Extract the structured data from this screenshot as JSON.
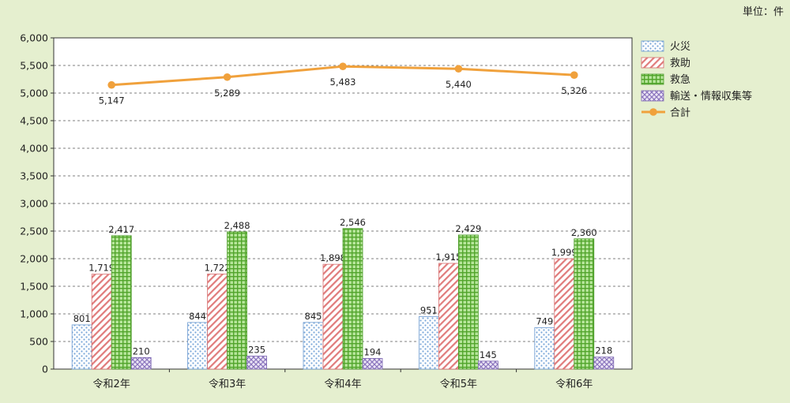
{
  "unit_label": "単位：件",
  "chart_data": {
    "type": "bar",
    "categories": [
      "令和2年",
      "令和3年",
      "令和4年",
      "令和5年",
      "令和6年"
    ],
    "ylim": [
      0,
      6000
    ],
    "yticks": [
      "0",
      "500",
      "1,000",
      "1,500",
      "2,000",
      "2,500",
      "3,000",
      "3,500",
      "4,000",
      "4,500",
      "5,000",
      "5,500",
      "6,000"
    ],
    "grid": true,
    "legend_position": "right",
    "series": [
      {
        "name": "火災",
        "kind": "bar",
        "color": "#bcd3ee",
        "values": [
          801,
          844,
          845,
          951,
          749
        ],
        "labels": [
          "801",
          "844",
          "845",
          "951",
          "749"
        ]
      },
      {
        "name": "救助",
        "kind": "bar",
        "color": "#f2b6b6",
        "values": [
          1719,
          1722,
          1898,
          1915,
          1999
        ],
        "labels": [
          "1,719",
          "1,722",
          "1,898",
          "1,915",
          "1,999"
        ]
      },
      {
        "name": "救急",
        "kind": "bar",
        "color": "#8fd06a",
        "values": [
          2417,
          2488,
          2546,
          2429,
          2360
        ],
        "labels": [
          "2,417",
          "2,488",
          "2,546",
          "2,429",
          "2,360"
        ]
      },
      {
        "name": "輸送・情報収集等",
        "kind": "bar",
        "color": "#b8a6d9",
        "values": [
          210,
          235,
          194,
          145,
          218
        ],
        "labels": [
          "210",
          "235",
          "194",
          "145",
          "218"
        ]
      },
      {
        "name": "合計",
        "kind": "line",
        "color": "#f0a13c",
        "values": [
          5147,
          5289,
          5483,
          5440,
          5326
        ],
        "labels": [
          "5,147",
          "5,289",
          "5,483",
          "5,440",
          "5,326"
        ]
      }
    ]
  }
}
